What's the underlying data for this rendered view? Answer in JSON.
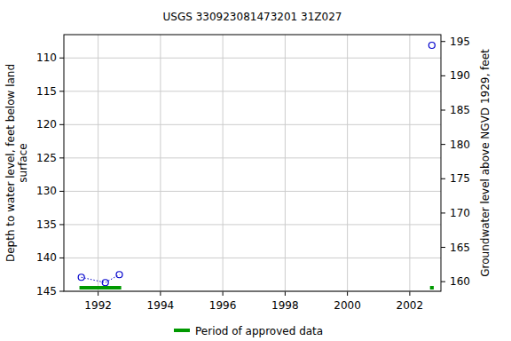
{
  "chart_data": {
    "type": "line",
    "title": "USGS 330923081473201 31Z027",
    "y_label": "Depth to water level, feet below land surface",
    "y2_label": "Groundwater level above NGVD 1929, feet",
    "xlim": [
      1990.9,
      2003.0
    ],
    "xticks": [
      1992,
      1994,
      1996,
      1998,
      2000,
      2002
    ],
    "ylim": [
      145,
      106.5
    ],
    "yticks": [
      110,
      115,
      120,
      125,
      130,
      135,
      140,
      145
    ],
    "y2lim": [
      158.6,
      196.0
    ],
    "y2ticks": [
      160,
      165,
      170,
      175,
      180,
      185,
      190,
      195
    ],
    "grid": true,
    "series": [
      {
        "name": "Depth to water level",
        "color": "#0000cc",
        "marker": "circle",
        "line_style": "dotted",
        "x": [
          1991.46,
          1992.23,
          1992.68,
          null,
          2002.71
        ],
        "values": [
          142.9,
          143.7,
          142.5,
          null,
          108.1
        ]
      },
      {
        "name": "Period of approved data",
        "type": "period",
        "color": "#009900",
        "start": [
          1991.4,
          2002.65
        ],
        "end": [
          1992.74,
          2002.77
        ]
      }
    ],
    "legend": "bottom"
  }
}
